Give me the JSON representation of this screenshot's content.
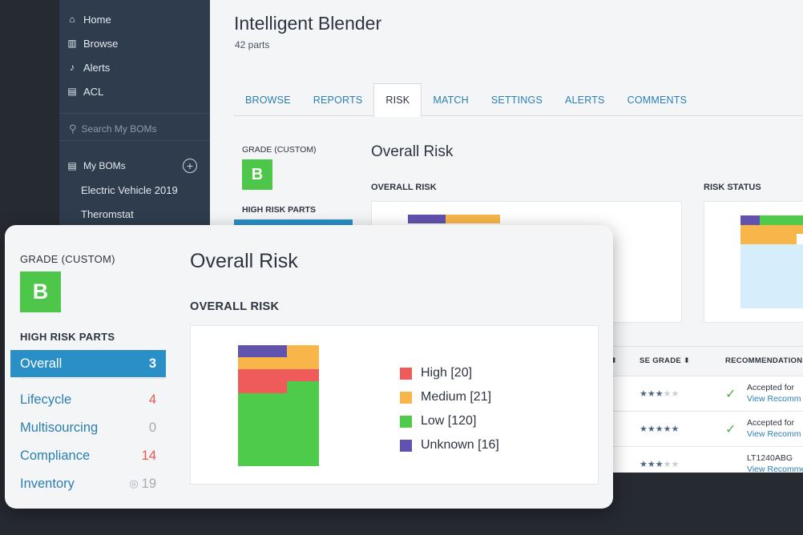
{
  "colors": {
    "high": "#ef5a5a",
    "medium": "#f8b54a",
    "low": "#4fcb4b",
    "unknown": "#6252b0",
    "grade": "#4ec64a",
    "accent": "#2a8fc6",
    "low_light": "#d6eefb",
    "sidebar": "#2f3c4d"
  },
  "sidebar": {
    "nav": [
      {
        "label": "Home",
        "icon": "home-icon"
      },
      {
        "label": "Browse",
        "icon": "book-icon"
      },
      {
        "label": "Alerts",
        "icon": "bell-icon"
      },
      {
        "label": "ACL",
        "icon": "clipboard-check-icon"
      }
    ],
    "search_placeholder": "Search My BOMs",
    "my_boms_label": "My BOMs",
    "add_symbol": "+",
    "boms": [
      "Electric Vehicle 2019",
      "Theromstat"
    ]
  },
  "header": {
    "title": "Intelligent Blender",
    "subtitle": "42 parts"
  },
  "tabs": [
    "BROWSE",
    "REPORTS",
    "RISK",
    "MATCH",
    "SETTINGS",
    "ALERTS",
    "COMMENTS"
  ],
  "active_tab": "RISK",
  "back_panel": {
    "grade_label": "GRADE (CUSTOM)",
    "grade": "B",
    "high_risk_label": "HIGH RISK PARTS",
    "overall_title": "Overall Risk",
    "overall_label": "OVERALL RISK",
    "status_label": "RISK STATUS"
  },
  "table": {
    "headers": [
      {
        "label": "",
        "sort": "⬍"
      },
      {
        "label": "SE GRADE",
        "sort": "⬍"
      },
      {
        "label": "RECOMMENDATION",
        "sort": ""
      }
    ],
    "rows": [
      {
        "stars": 3,
        "rec_text": "Accepted for",
        "rec_link": "View Recomm",
        "check": true
      },
      {
        "stars": 5,
        "rec_text": "Accepted for",
        "rec_link": "View Recomm",
        "check": true
      },
      {
        "stars": 3,
        "rec_text": "LT1240ABG",
        "rec_link": "View Recommend",
        "check": false
      }
    ]
  },
  "front": {
    "grade_label": "GRADE (CUSTOM)",
    "grade": "B",
    "high_risk_label": "HIGH RISK PARTS",
    "categories": [
      {
        "label": "Overall",
        "count": "3",
        "style": "active"
      },
      {
        "label": "Lifecycle",
        "count": "4",
        "style": "red"
      },
      {
        "label": "Multisourcing",
        "count": "0",
        "style": "grey"
      },
      {
        "label": "Compliance",
        "count": "14",
        "style": "red"
      },
      {
        "label": "Inventory",
        "count": "19",
        "style": "grey",
        "eye": true
      }
    ],
    "title": "Overall Risk",
    "chart_label": "OVERALL RISK",
    "legend": [
      {
        "label": "High [20]",
        "key": "high"
      },
      {
        "label": "Medium [21]",
        "key": "medium"
      },
      {
        "label": "Low [120]",
        "key": "low"
      },
      {
        "label": "Unknown [16]",
        "key": "unknown"
      }
    ]
  },
  "chart_data": {
    "type": "treemap",
    "series": [
      {
        "name": "High",
        "value": 20
      },
      {
        "name": "Medium",
        "value": 21
      },
      {
        "name": "Low",
        "value": 120
      },
      {
        "name": "Unknown",
        "value": 16
      }
    ]
  }
}
